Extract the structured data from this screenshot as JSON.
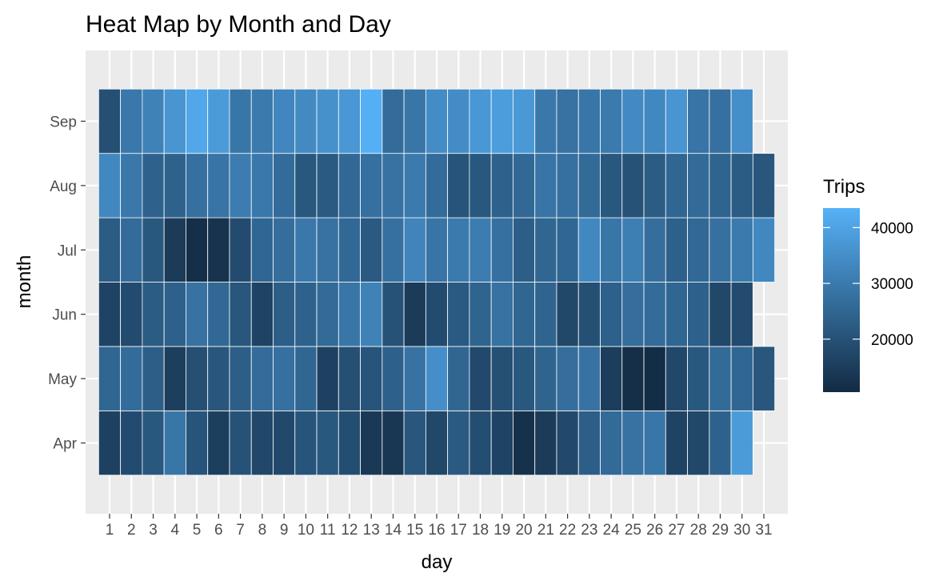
{
  "chart_data": {
    "type": "heatmap",
    "title": "Heat Map by Month and Day",
    "xlabel": "day",
    "ylabel": "month",
    "x_categories": [
      "1",
      "2",
      "3",
      "4",
      "5",
      "6",
      "7",
      "8",
      "9",
      "10",
      "11",
      "12",
      "13",
      "14",
      "15",
      "16",
      "17",
      "18",
      "19",
      "20",
      "21",
      "22",
      "23",
      "24",
      "25",
      "26",
      "27",
      "28",
      "29",
      "30",
      "31"
    ],
    "y_categories": [
      "Apr",
      "May",
      "Jun",
      "Jul",
      "Aug",
      "Sep"
    ],
    "values": {
      "Apr": [
        16000,
        18500,
        21500,
        29000,
        20500,
        15500,
        20000,
        17500,
        18000,
        20500,
        21500,
        19000,
        14000,
        13500,
        21000,
        17500,
        22000,
        19000,
        16500,
        12000,
        14500,
        18000,
        23000,
        26000,
        28000,
        29000,
        16500,
        17500,
        24000,
        38000,
        null
      ],
      "May": [
        25000,
        26500,
        23000,
        15500,
        19500,
        21000,
        23000,
        26500,
        27500,
        25000,
        16000,
        19500,
        20500,
        23500,
        28000,
        35000,
        25000,
        18000,
        19500,
        21500,
        24500,
        27000,
        28000,
        15000,
        11500,
        11000,
        17500,
        21500,
        26000,
        25000,
        21000
      ],
      "Jun": [
        16500,
        18500,
        22500,
        23500,
        28000,
        25500,
        21000,
        16500,
        23000,
        24000,
        26000,
        29000,
        32000,
        20000,
        14500,
        18500,
        22000,
        24500,
        28000,
        25000,
        24500,
        17500,
        19500,
        23500,
        27000,
        26500,
        25000,
        23500,
        17500,
        18500,
        null
      ],
      "Jul": [
        22500,
        26500,
        21500,
        14500,
        11500,
        12500,
        18500,
        25000,
        27000,
        29500,
        28000,
        25500,
        22000,
        27500,
        32500,
        28500,
        30000,
        30500,
        27500,
        23000,
        25000,
        25000,
        33500,
        29000,
        31000,
        27000,
        23500,
        25500,
        27500,
        30000,
        33500
      ],
      "Aug": [
        33500,
        29500,
        24000,
        24000,
        27500,
        28500,
        30500,
        29500,
        26500,
        21500,
        22000,
        25500,
        27500,
        28000,
        30000,
        26500,
        20500,
        21500,
        24000,
        25500,
        28500,
        27500,
        26000,
        21500,
        20000,
        22500,
        25000,
        26000,
        24500,
        22500,
        21000
      ],
      "Sep": [
        19500,
        29500,
        32000,
        36500,
        41000,
        38000,
        29000,
        30000,
        33000,
        34000,
        35500,
        37000,
        43000,
        26500,
        29000,
        34500,
        34500,
        37000,
        38500,
        37500,
        29500,
        28000,
        29000,
        30000,
        34000,
        33500,
        36500,
        28500,
        27500,
        35000,
        null
      ]
    },
    "color_scale": {
      "low": "#132B43",
      "high": "#56B1F7",
      "domain": [
        10500,
        43500
      ]
    },
    "legend": {
      "title": "Trips",
      "ticks": [
        {
          "value": 20000,
          "label": "20000"
        },
        {
          "value": 30000,
          "label": "30000"
        },
        {
          "value": 40000,
          "label": "40000"
        }
      ]
    },
    "grid": true,
    "panel_background": "#EBEBEB"
  }
}
